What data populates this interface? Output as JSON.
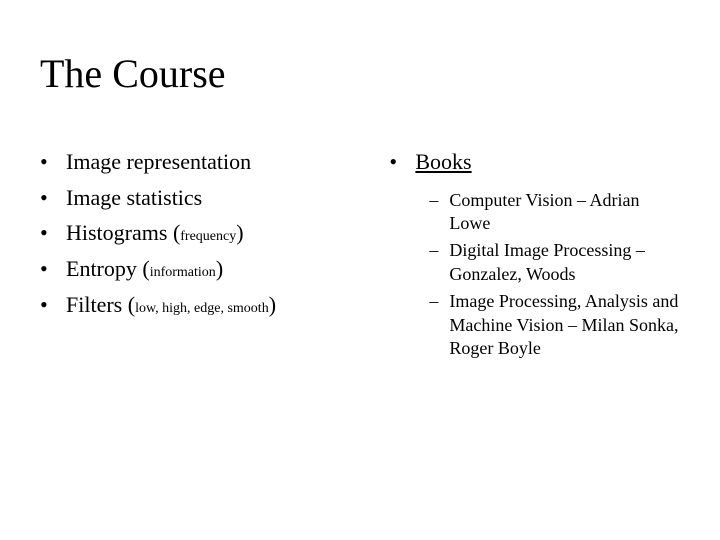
{
  "title": "The Course",
  "left": {
    "items": [
      {
        "text": "Image representation",
        "sub": ""
      },
      {
        "text": "Image statistics",
        "sub": ""
      },
      {
        "text": "Histograms (",
        "sub": "frequency",
        "tail": ")"
      },
      {
        "text": "Entropy (",
        "sub": "information",
        "tail": ")"
      },
      {
        "text": "Filters (",
        "sub": "low, high, edge, smooth",
        "tail": ")"
      }
    ]
  },
  "right": {
    "header": "Books",
    "items": [
      "Computer Vision –     Adrian Lowe",
      "Digital Image Processing – Gonzalez, Woods",
      "Image Processing, Analysis and Machine Vision – Milan Sonka, Roger Boyle"
    ]
  },
  "colors": {
    "background": "#ffffff",
    "text": "#000000"
  },
  "typography": {
    "title_fontsize": 40,
    "body_fontsize": 22,
    "subscript_fontsize": 14,
    "subbullet_fontsize": 18,
    "font_family": "Times New Roman"
  }
}
